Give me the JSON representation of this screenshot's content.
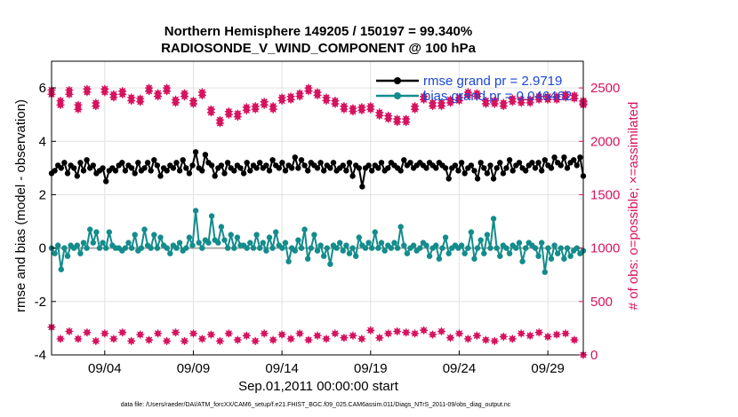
{
  "chart_data": {
    "type": "line",
    "title": "Northern Hemisphere 149205 / 150197 = 99.340%",
    "subtitle": "RADIOSONDE_V_WIND_COMPONENT @ 100 hPa",
    "xlabel": "Sep.01,2011 00:00:00 start",
    "ylabel": "rmse and bias (model - observation)",
    "ylabel_right": "# of obs: o=possible; ×=assimilated",
    "footnote": "data file: /Users/raeder/DAI/ATM_forcXX/CAM6_setup/f.e21.FHIST_BGC.f09_025.CAM6assim.011/Diags_NTrS_2011-09/obs_diag_output.nc",
    "x_ticks": [
      "09/04",
      "09/09",
      "09/14",
      "09/19",
      "09/24",
      "09/29"
    ],
    "y_ticks": [
      "6",
      "4",
      "2",
      "0",
      "-2",
      "-4"
    ],
    "y_right_ticks": [
      "2500",
      "2000",
      "1500",
      "1000",
      "500",
      "0"
    ],
    "ylim": [
      -4,
      7
    ],
    "ylim_right": [
      0,
      2750
    ],
    "xlim": [
      1,
      31
    ],
    "grid": true,
    "legend_position": "top-right",
    "series": [
      {
        "name": "rmse grand pr = 2.9719",
        "color": "#000000",
        "axis": "left",
        "values": [
          2.8,
          2.9,
          3.1,
          3.0,
          3.2,
          2.8,
          3.1,
          3.0,
          2.7,
          3.2,
          2.9,
          3.3,
          3.0,
          3.1,
          2.8,
          2.9,
          3.0,
          2.5,
          2.9,
          3.0,
          2.9,
          3.1,
          3.2,
          2.9,
          3.1,
          3.0,
          2.8,
          3.2,
          2.9,
          3.0,
          3.2,
          2.9,
          3.3,
          3.1,
          2.7,
          3.0,
          2.9,
          3.1,
          3.0,
          3.2,
          2.9,
          3.3,
          3.0,
          2.8,
          3.1,
          3.6,
          3.0,
          2.9,
          3.5,
          3.2,
          3.1,
          2.7,
          3.0,
          3.1,
          2.8,
          3.2,
          3.0,
          2.9,
          3.1,
          3.0,
          2.8,
          3.2,
          2.9,
          3.1,
          3.0,
          3.2,
          3.0,
          3.1,
          2.9,
          3.3,
          3.1,
          3.0,
          3.2,
          2.9,
          3.1,
          3.0,
          3.4,
          3.0,
          3.3,
          3.1,
          2.9,
          3.2,
          3.1,
          3.0,
          3.2,
          2.9,
          3.1,
          3.0,
          3.2,
          2.9,
          3.0,
          3.1,
          2.9,
          3.2,
          2.7,
          3.1,
          3.0,
          2.3,
          3.0,
          3.1,
          2.9,
          3.1,
          3.0,
          3.2,
          2.9,
          3.0,
          3.2,
          3.1,
          3.0,
          2.9,
          3.3,
          3.1,
          3.2,
          3.0,
          3.1,
          3.2,
          3.1,
          3.0,
          3.2,
          3.1,
          3.0,
          3.2,
          3.1,
          3.0,
          2.6,
          3.0,
          3.1,
          2.9,
          3.2,
          2.8,
          3.0,
          3.1,
          2.9,
          2.6,
          3.2,
          3.0,
          2.8,
          3.1,
          2.6,
          3.0,
          3.2,
          2.8,
          3.0,
          3.3,
          2.9,
          3.1,
          3.2,
          3.0,
          2.9,
          3.1,
          3.2,
          3.0,
          3.2,
          2.9,
          3.3,
          3.1,
          3.0,
          3.4,
          3.2,
          3.1,
          3.4,
          3.0,
          3.2,
          3.3,
          3.1,
          3.4,
          2.7
        ]
      },
      {
        "name": "bias grand pr = 0.046462",
        "color": "#138c8c",
        "axis": "left",
        "values": [
          0.0,
          -0.2,
          0.1,
          -0.8,
          0.0,
          -0.3,
          0.1,
          0.0,
          0.1,
          -0.2,
          0.2,
          0.0,
          0.7,
          0.2,
          0.6,
          0.0,
          0.2,
          0.0,
          0.6,
          0.1,
          0.0,
          0.0,
          -0.1,
          0.0,
          0.2,
          0.0,
          0.5,
          -0.1,
          0.0,
          0.7,
          0.1,
          0.0,
          0.5,
          0.0,
          0.4,
          0.1,
          0.0,
          -0.2,
          0.1,
          0.0,
          0.2,
          -0.1,
          0.0,
          0.4,
          0.1,
          1.4,
          0.2,
          0.0,
          0.3,
          0.2,
          1.2,
          0.3,
          0.2,
          0.8,
          0.3,
          0.0,
          0.5,
          0.0,
          0.4,
          0.1,
          0.1,
          0.0,
          0.2,
          0.0,
          0.5,
          0.0,
          0.2,
          -0.1,
          0.4,
          0.0,
          0.6,
          0.1,
          0.0,
          0.2,
          -0.5,
          0.0,
          -0.1,
          0.3,
          0.0,
          0.7,
          -0.4,
          0.0,
          0.5,
          -0.1,
          0.1,
          -0.3,
          0.0,
          -0.6,
          0.1,
          0.0,
          0.2,
          -0.1,
          0.1,
          -0.2,
          0.0,
          -0.3,
          0.4,
          0.1,
          0.0,
          0.2,
          0.0,
          0.6,
          0.0,
          0.2,
          -0.1,
          0.1,
          0.0,
          0.2,
          0.0,
          0.8,
          0.1,
          -0.2,
          0.0,
          0.1,
          -0.1,
          0.0,
          0.2,
          0.1,
          -0.3,
          0.0,
          0.1,
          -0.4,
          0.0,
          0.4,
          -0.2,
          0.0,
          0.1,
          0.0,
          0.1,
          -0.2,
          0.0,
          0.6,
          -0.4,
          0.0,
          0.3,
          -0.2,
          0.5,
          0.0,
          1.1,
          0.0,
          -0.3,
          0.1,
          0.0,
          -0.2,
          0.1,
          0.0,
          0.2,
          -0.5,
          0.0,
          0.2,
          0.1,
          0.0,
          -0.3,
          0.2,
          -0.9,
          0.0,
          -0.4,
          0.1,
          -0.2,
          0.0,
          -0.4,
          0.0,
          -0.3,
          -0.1,
          0.0,
          -0.2,
          -0.1
        ]
      },
      {
        "name": "possible",
        "color": "#d6135f",
        "axis": "right",
        "values": [
          2440,
          2340,
          2440,
          2300,
          2460,
          2330,
          2460,
          2410,
          2440,
          2380,
          2370,
          2470,
          2420,
          2470,
          2360,
          2420,
          2350,
          2430,
          2270,
          2170,
          2250,
          2230,
          2290,
          2300,
          2340,
          2300,
          2380,
          2390,
          2420,
          2470,
          2430,
          2380,
          2350,
          2300,
          2280,
          2290,
          2300,
          2240,
          2210,
          2180,
          2180,
          2300,
          2390,
          2330,
          2330,
          2360,
          2380,
          2430,
          2420,
          2350,
          2350,
          2330,
          2370,
          2360,
          2360,
          2390,
          2390,
          2390,
          2410,
          2400,
          2350,
          2340
        ],
        "x": [
          1.0,
          1.5,
          2.0,
          2.5,
          3.0,
          3.5,
          4.0,
          4.5,
          5.0,
          5.5,
          6.0,
          6.5,
          7.0,
          7.5,
          8.0,
          8.5,
          9.0,
          9.5,
          10.0,
          10.5,
          11.0,
          11.5,
          12.0,
          12.5,
          13.0,
          13.5,
          14.0,
          14.5,
          15.0,
          15.5,
          16.0,
          16.5,
          17.0,
          17.5,
          18.0,
          18.5,
          19.0,
          19.5,
          20.0,
          20.5,
          21.0,
          21.5,
          22.0,
          22.5,
          23.0,
          23.5,
          24.0,
          24.5,
          25.0,
          25.5,
          26.0,
          26.5,
          27.0,
          27.5,
          28.0,
          28.5,
          29.0,
          29.5,
          30.0,
          30.5,
          31.0,
          31.0
        ]
      },
      {
        "name": "assimilated",
        "color": "#d6135f",
        "axis": "right",
        "values": [
          2480,
          2380,
          2480,
          2340,
          2490,
          2360,
          2490,
          2440,
          2470,
          2410,
          2400,
          2500,
          2450,
          2500,
          2390,
          2450,
          2380,
          2460,
          2300,
          2200,
          2280,
          2260,
          2320,
          2330,
          2370,
          2330,
          2410,
          2420,
          2450,
          2500,
          2460,
          2410,
          2380,
          2330,
          2310,
          2320,
          2330,
          2270,
          2240,
          2210,
          2210,
          2330,
          2420,
          2360,
          2360,
          2390,
          2410,
          2460,
          2450,
          2380,
          2380,
          2360,
          2400,
          2390,
          2390,
          2420,
          2420,
          2420,
          2440,
          2430,
          2380,
          2370
        ],
        "x": [
          1.0,
          1.5,
          2.0,
          2.5,
          3.0,
          3.5,
          4.0,
          4.5,
          5.0,
          5.5,
          6.0,
          6.5,
          7.0,
          7.5,
          8.0,
          8.5,
          9.0,
          9.5,
          10.0,
          10.5,
          11.0,
          11.5,
          12.0,
          12.5,
          13.0,
          13.5,
          14.0,
          14.5,
          15.0,
          15.5,
          16.0,
          16.5,
          17.0,
          17.5,
          18.0,
          18.5,
          19.0,
          19.5,
          20.0,
          20.5,
          21.0,
          21.5,
          22.0,
          22.5,
          23.0,
          23.5,
          24.0,
          24.5,
          25.0,
          25.5,
          26.0,
          26.5,
          27.0,
          27.5,
          28.0,
          28.5,
          29.0,
          29.5,
          30.0,
          30.5,
          31.0,
          31.0
        ]
      },
      {
        "name": "possible-low",
        "color": "#d6135f",
        "axis": "right",
        "values": [
          260,
          150,
          220,
          150,
          210,
          130,
          200,
          150,
          210,
          130,
          190,
          140,
          200,
          130,
          210,
          130,
          200,
          150,
          190,
          130,
          200,
          140,
          180,
          130,
          200,
          140,
          190,
          150,
          200,
          140,
          180,
          150,
          200,
          160,
          180,
          150,
          230,
          160,
          200,
          220,
          210,
          200,
          230,
          190,
          220,
          160,
          200,
          150,
          180,
          140,
          130,
          170,
          150,
          200,
          180,
          210,
          170,
          190,
          200,
          140,
          0
        ],
        "x": [
          1.0,
          1.5,
          2.0,
          2.5,
          3.0,
          3.5,
          4.0,
          4.5,
          5.0,
          5.5,
          6.0,
          6.5,
          7.0,
          7.5,
          8.0,
          8.5,
          9.0,
          9.5,
          10.0,
          10.5,
          11.0,
          11.5,
          12.0,
          12.5,
          13.0,
          13.5,
          14.0,
          14.5,
          15.0,
          15.5,
          16.0,
          16.5,
          17.0,
          17.5,
          18.0,
          18.5,
          19.0,
          19.5,
          20.0,
          20.5,
          21.0,
          21.5,
          22.0,
          22.5,
          23.0,
          23.5,
          24.0,
          24.5,
          25.0,
          25.5,
          26.0,
          26.5,
          27.0,
          27.5,
          28.0,
          28.5,
          29.0,
          29.5,
          30.0,
          30.5,
          31.0
        ]
      }
    ]
  }
}
